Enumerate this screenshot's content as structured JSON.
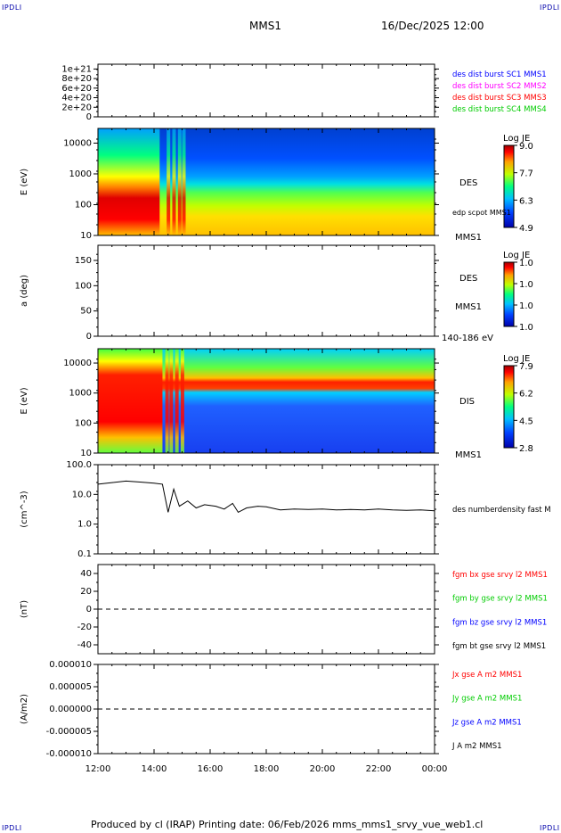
{
  "corner_labels": {
    "top_left": "IPDLI",
    "top_right": "IPDLI",
    "bottom_left": "IPDLI",
    "bottom_right": "IPDLI"
  },
  "header": {
    "spacecraft": "MMS1",
    "date": "16/Dec/2025 12:00"
  },
  "footer": "Produced by cl (IRAP)   Printing date: 06/Feb/2026   mms_mms1_srvy_vue_web1.cl",
  "colors": {
    "blue": "#0000ff",
    "magenta": "#ff00ff",
    "red": "#ff0000",
    "green": "#00cc00",
    "black": "#000000"
  },
  "chart_data": [
    {
      "id": "panel-des-dist",
      "type": "line",
      "ytick_labels": [
        "1e+21",
        "8e+20",
        "6e+20",
        "4e+20",
        "2e+20",
        "0"
      ],
      "ytick_values": [
        1e+21,
        8e+20,
        6e+20,
        4e+20,
        2e+20,
        0
      ],
      "ylim": [
        0,
        1.1e+21
      ],
      "legend": [
        {
          "text": "des dist burst SC1 MMS1",
          "color": "#0000ff"
        },
        {
          "text": "des dist burst SC2 MMS2",
          "color": "#ff00ff"
        },
        {
          "text": "des dist burst SC3 MMS3",
          "color": "#ff0000"
        },
        {
          "text": "des dist burst SC4 MMS4",
          "color": "#00cc00"
        }
      ],
      "dashed_zero": true
    },
    {
      "id": "panel-des-energy",
      "type": "heatmap",
      "ylabel": "E (eV)",
      "ytick_labels": [
        "10000",
        "1000",
        "100",
        "10"
      ],
      "ytick_values": [
        10000,
        1000,
        100,
        10
      ],
      "ylim": [
        10,
        30000
      ],
      "yscale": "log",
      "side_labels": [
        "DES",
        "edp scpot MMS1",
        "MMS1"
      ],
      "colorbar": {
        "title": "Log JE",
        "ticks": [
          "9.0",
          "7.7",
          "6.3",
          "4.9"
        ]
      }
    },
    {
      "id": "panel-des-pitch",
      "type": "heatmap",
      "ylabel": "a (deg)",
      "ytick_labels": [
        "150",
        "100",
        "50",
        "0"
      ],
      "ytick_values": [
        150,
        100,
        50,
        0
      ],
      "ylim": [
        0,
        180
      ],
      "side_labels": [
        "DES",
        "MMS1",
        "140-186 eV"
      ],
      "colorbar": {
        "title": "Log JE",
        "ticks": [
          "1.0",
          "1.0",
          "1.0",
          "1.0"
        ]
      }
    },
    {
      "id": "panel-dis-energy",
      "type": "heatmap",
      "ylabel": "E (eV)",
      "ytick_labels": [
        "10000",
        "1000",
        "100",
        "10"
      ],
      "ytick_values": [
        10000,
        1000,
        100,
        10
      ],
      "ylim": [
        10,
        30000
      ],
      "yscale": "log",
      "side_labels": [
        "DIS",
        "MMS1"
      ],
      "colorbar": {
        "title": "Log JE",
        "ticks": [
          "7.9",
          "6.2",
          "4.5",
          "2.8"
        ]
      }
    },
    {
      "id": "panel-density",
      "type": "line",
      "ylabel": "(cm^-3)",
      "ytick_labels": [
        "100.0",
        "10.0",
        "1.0",
        "0.1"
      ],
      "ytick_values": [
        100,
        10,
        1,
        0.1
      ],
      "ylim": [
        0.1,
        100
      ],
      "yscale": "log",
      "legend": [
        {
          "text": "des numberdensity fast M",
          "color": "#000000"
        }
      ],
      "series": [
        {
          "name": "des numberdensity fast",
          "x": [
            0,
            0.5,
            1,
            1.5,
            2,
            2.3,
            2.5,
            2.7,
            2.9,
            3.2,
            3.5,
            3.8,
            4.2,
            4.5,
            4.8,
            5,
            5.3,
            5.7,
            6,
            6.5,
            7,
            7.5,
            8,
            8.5,
            9,
            9.5,
            10,
            10.5,
            11,
            11.5,
            12
          ],
          "values": [
            22,
            25,
            28,
            26,
            24,
            22,
            2.5,
            15,
            4,
            6,
            3.5,
            4.5,
            4,
            3.2,
            5,
            2.5,
            3.5,
            4,
            3.8,
            3,
            3.2,
            3.1,
            3.2,
            3,
            3.1,
            3,
            3.2,
            3,
            2.9,
            3,
            2.8
          ]
        }
      ]
    },
    {
      "id": "panel-fgm",
      "type": "line",
      "ylabel": "(nT)",
      "ytick_labels": [
        "40",
        "20",
        "0",
        "-20",
        "-40"
      ],
      "ytick_values": [
        40,
        20,
        0,
        -20,
        -40
      ],
      "ylim": [
        -50,
        50
      ],
      "legend": [
        {
          "text": "fgm bx gse srvy l2 MMS1",
          "color": "#ff0000"
        },
        {
          "text": "fgm by gse srvy l2 MMS1",
          "color": "#00cc00"
        },
        {
          "text": "fgm bz gse srvy l2 MMS1",
          "color": "#0000ff"
        },
        {
          "text": "fgm bt gse srvy l2 MMS1",
          "color": "#000000"
        }
      ],
      "dashed_zero": true
    },
    {
      "id": "panel-current",
      "type": "line",
      "ylabel": "(A/m2)",
      "ytick_labels": [
        "0.000010",
        "0.000005",
        "0.000000",
        "-0.000005",
        "-0.000010"
      ],
      "ytick_values": [
        1e-05,
        5e-06,
        0,
        -5e-06,
        -1e-05
      ],
      "ylim": [
        -1e-05,
        1e-05
      ],
      "legend": [
        {
          "text": "Jx gse A m2 MMS1",
          "color": "#ff0000"
        },
        {
          "text": "Jy gse A m2 MMS1",
          "color": "#00cc00"
        },
        {
          "text": "Jz gse A m2 MMS1",
          "color": "#0000ff"
        },
        {
          "text": "J A m2 MMS1",
          "color": "#000000"
        }
      ],
      "dashed_zero": true,
      "xtick_labels": [
        "12:00",
        "14:00",
        "16:00",
        "18:00",
        "20:00",
        "22:00",
        "00:00"
      ],
      "xlim_hours": [
        0,
        12
      ]
    }
  ]
}
